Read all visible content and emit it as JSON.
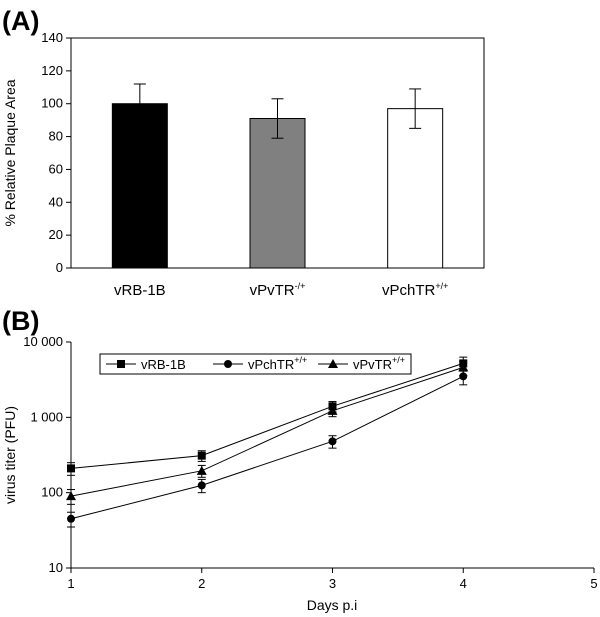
{
  "chart_data": [
    {
      "panel_label": "(A)",
      "type": "bar",
      "ylabel": "% Relative Plaque Area",
      "ylim": [
        0,
        140
      ],
      "yticks": [
        "0",
        "20",
        "40",
        "60",
        "80",
        "100",
        "120",
        "140"
      ],
      "grid": false,
      "categories": [
        {
          "base": "vRB-1B",
          "sup": ""
        },
        {
          "base": "vPvTR",
          "sup": "-/+"
        },
        {
          "base": "vPchTR",
          "sup": "+/+"
        }
      ],
      "values": [
        100,
        91,
        97
      ],
      "errors": [
        12,
        12,
        12
      ],
      "colors": [
        "#000000",
        "#808080",
        "#ffffff"
      ]
    },
    {
      "panel_label": "(B)",
      "type": "line",
      "xlabel": "Days p.i",
      "ylabel": "virus titer (PFU)",
      "yscale": "log",
      "xlim": [
        1,
        5
      ],
      "ylim": [
        10,
        10000
      ],
      "xticks": [
        "1",
        "2",
        "3",
        "4",
        "5"
      ],
      "yticks": [
        "10",
        "100",
        "1 000",
        "10 000"
      ],
      "grid": false,
      "legend_position": "top",
      "series": [
        {
          "base": "vRB-1B",
          "sup": "",
          "marker": "square",
          "x": [
            1,
            2,
            3,
            4
          ],
          "y": [
            210,
            310,
            1400,
            5200
          ],
          "errors": [
            40,
            50,
            220,
            1100
          ]
        },
        {
          "base": "vPchTR",
          "sup": "+/+",
          "marker": "circle",
          "x": [
            1,
            2,
            3,
            4
          ],
          "y": [
            45,
            125,
            480,
            3500
          ],
          "errors": [
            10,
            25,
            90,
            800
          ]
        },
        {
          "base": "vPvTR",
          "sup": "+/+",
          "marker": "triangle",
          "x": [
            1,
            2,
            3,
            4
          ],
          "y": [
            90,
            195,
            1220,
            4600
          ],
          "errors": [
            20,
            35,
            200,
            1000
          ]
        }
      ]
    }
  ]
}
